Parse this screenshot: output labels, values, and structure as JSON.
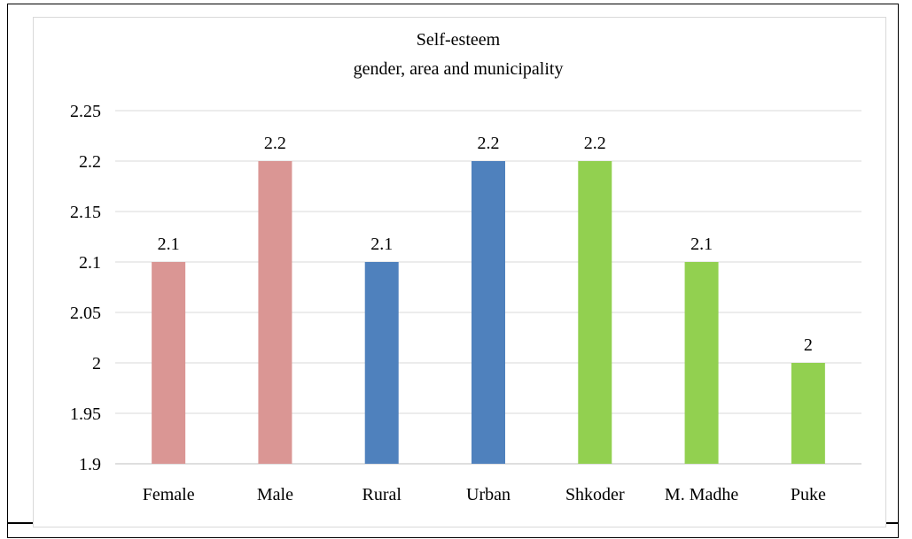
{
  "chart_data": {
    "type": "bar",
    "title": "Self-esteem",
    "subtitle": "gender, area and municipality",
    "categories": [
      "Female",
      "Male",
      "Rural",
      "Urban",
      "Shkoder",
      "M. Madhe",
      "Puke"
    ],
    "values": [
      2.1,
      2.2,
      2.1,
      2.2,
      2.2,
      2.1,
      2.0
    ],
    "data_labels": [
      "2.1",
      "2.2",
      "2.1",
      "2.2",
      "2.2",
      "2.1",
      "2"
    ],
    "colors": [
      "#da9694",
      "#da9694",
      "#4f81bd",
      "#4f81bd",
      "#92d050",
      "#92d050",
      "#92d050"
    ],
    "yticks": [
      "1.9",
      "1.95",
      "2",
      "2.05",
      "2.1",
      "2.15",
      "2.2",
      "2.25"
    ],
    "ylim": [
      1.9,
      2.25
    ],
    "xlabel": "",
    "ylabel": "",
    "grid": true,
    "gridline_color": "#d9d9d9",
    "legend": "none"
  }
}
